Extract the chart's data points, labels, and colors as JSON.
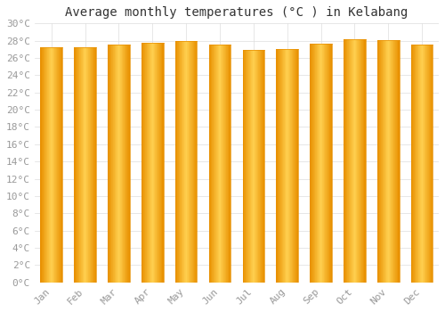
{
  "title": "Average monthly temperatures (°C ) in Kelabang",
  "months": [
    "Jan",
    "Feb",
    "Mar",
    "Apr",
    "May",
    "Jun",
    "Jul",
    "Aug",
    "Sep",
    "Oct",
    "Nov",
    "Dec"
  ],
  "values": [
    27.2,
    27.2,
    27.6,
    27.8,
    28.0,
    27.5,
    26.9,
    27.0,
    27.7,
    28.2,
    28.1,
    27.5
  ],
  "bar_color_center": "#FFD050",
  "bar_color_edge": "#E89000",
  "background_color": "#FFFFFF",
  "plot_bg_color": "#FFFFFF",
  "grid_color": "#DDDDDD",
  "ylim": [
    0,
    30
  ],
  "yticks": [
    0,
    2,
    4,
    6,
    8,
    10,
    12,
    14,
    16,
    18,
    20,
    22,
    24,
    26,
    28,
    30
  ],
  "title_fontsize": 10,
  "tick_fontsize": 8,
  "tick_font_color": "#999999",
  "bar_width": 0.65
}
